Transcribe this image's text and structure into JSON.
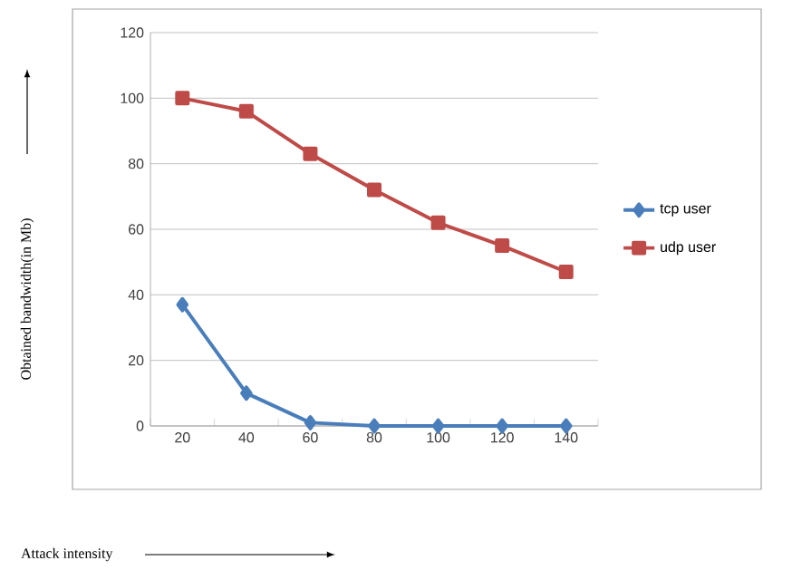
{
  "chart_data": {
    "type": "line",
    "categories": [
      "20",
      "40",
      "60",
      "80",
      "100",
      "120",
      "140"
    ],
    "annotations": [
      "Attack intensity",
      "Obtained bandwidth(in Mb)"
    ],
    "ylim": [
      0,
      120
    ],
    "yticks": [
      0,
      20,
      40,
      60,
      80,
      100,
      120
    ],
    "grid": "y",
    "legend": "right",
    "series": [
      {
        "name": "tcp user",
        "color": "#4a7ebb",
        "marker": "diamond",
        "values": [
          37,
          10,
          1,
          0,
          0,
          0,
          0
        ]
      },
      {
        "name": "udp user",
        "color": "#be4b48",
        "marker": "square",
        "values": [
          100,
          96,
          83,
          72,
          62,
          55,
          47
        ]
      }
    ]
  }
}
